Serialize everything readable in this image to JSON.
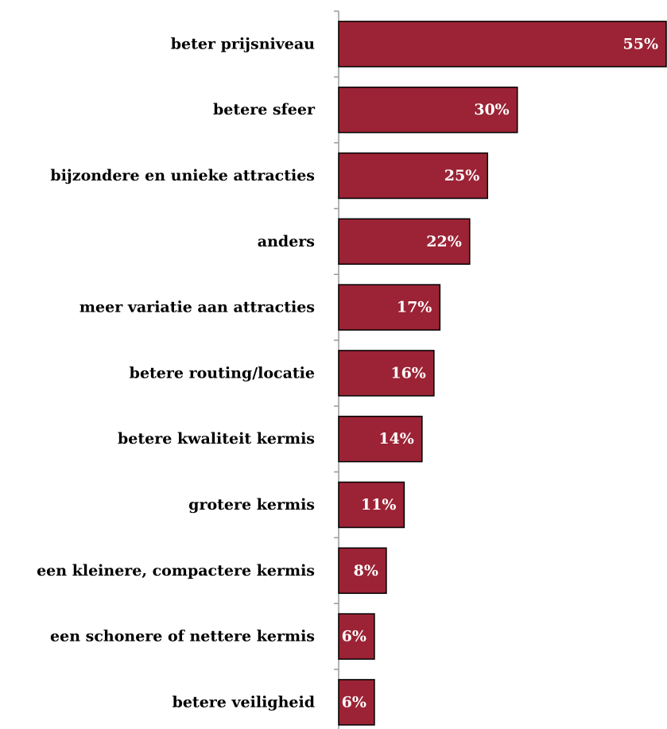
{
  "chart_data": {
    "type": "bar",
    "orientation": "horizontal",
    "categories": [
      "beter prijsniveau",
      "betere sfeer",
      "bijzondere en unieke attracties",
      "anders",
      "meer variatie aan attracties",
      "betere routing/locatie",
      "betere kwaliteit kermis",
      "grotere kermis",
      "een kleinere, compactere kermis",
      "een schonere of nettere kermis",
      "betere veiligheid"
    ],
    "values": [
      55,
      30,
      25,
      22,
      17,
      16,
      14,
      11,
      8,
      6,
      6
    ],
    "value_labels": [
      "55%",
      "30%",
      "25%",
      "22%",
      "17%",
      "16%",
      "14%",
      "11%",
      "8%",
      "6%",
      "6%"
    ],
    "unit": "%",
    "xlim": [
      0,
      55
    ],
    "title": "",
    "xlabel": "",
    "ylabel": "",
    "grid": false,
    "legend": "none",
    "bar_color": "#9b2335",
    "bar_outline_color": "#000000",
    "axis_color": "#999999"
  }
}
